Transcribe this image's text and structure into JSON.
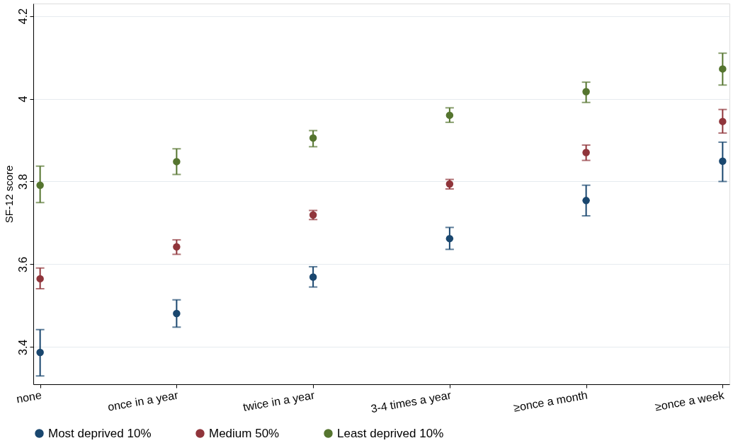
{
  "chart_data": {
    "type": "scatter",
    "ylabel": "SF-12 score",
    "categories": [
      "none",
      "once in a year",
      "twice in a year",
      "3-4 times a year",
      "≥once a month",
      "≥once a week"
    ],
    "series": [
      {
        "name": "Most deprived 10%",
        "color": "#1a476f",
        "values": [
          3.387,
          3.481,
          3.569,
          3.662,
          3.754,
          3.849
        ],
        "errors": [
          [
            3.33,
            3.442
          ],
          [
            3.448,
            3.514
          ],
          [
            3.545,
            3.594
          ],
          [
            3.636,
            3.689
          ],
          [
            3.717,
            3.791
          ],
          [
            3.8,
            3.895
          ]
        ]
      },
      {
        "name": "Medium 50%",
        "color": "#90353b",
        "values": [
          3.565,
          3.642,
          3.719,
          3.794,
          3.87,
          3.945
        ],
        "errors": [
          [
            3.541,
            3.591
          ],
          [
            3.624,
            3.659
          ],
          [
            3.708,
            3.73
          ],
          [
            3.782,
            3.805
          ],
          [
            3.851,
            3.888
          ],
          [
            3.917,
            3.974
          ]
        ]
      },
      {
        "name": "Least deprived 10%",
        "color": "#55752f",
        "values": [
          3.791,
          3.848,
          3.905,
          3.96,
          4.017,
          4.072
        ],
        "errors": [
          [
            3.749,
            3.837
          ],
          [
            3.817,
            3.879
          ],
          [
            3.884,
            3.923
          ],
          [
            3.943,
            3.978
          ],
          [
            3.991,
            4.04
          ],
          [
            4.033,
            4.11
          ]
        ]
      }
    ],
    "ylim": [
      3.31,
      4.23
    ],
    "yticks": [
      3.4,
      3.6,
      3.8,
      4,
      4.2
    ],
    "grid": "y",
    "legend": "bottom",
    "marker": "circle"
  }
}
